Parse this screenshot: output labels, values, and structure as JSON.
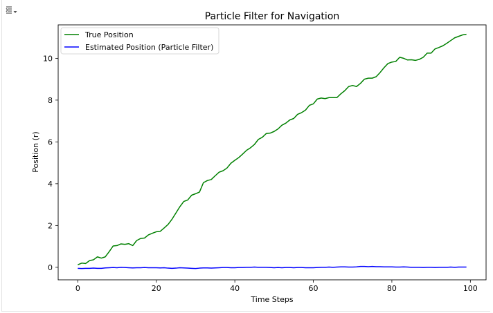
{
  "cell": {
    "icon": "output-collapse-icon"
  },
  "chart_data": {
    "type": "line",
    "title": "Particle Filter for Navigation",
    "xlabel": "Time Steps",
    "ylabel": "Position (r)",
    "xlim": [
      -5,
      104
    ],
    "ylim": [
      -0.6,
      11.6
    ],
    "xticks": [
      0,
      20,
      40,
      60,
      80,
      100
    ],
    "yticks": [
      0,
      2,
      4,
      6,
      8,
      10
    ],
    "grid": false,
    "legend": "upper left",
    "x": [
      0,
      1,
      2,
      3,
      4,
      5,
      6,
      7,
      8,
      9,
      10,
      11,
      12,
      13,
      14,
      15,
      16,
      17,
      18,
      19,
      20,
      21,
      22,
      23,
      24,
      25,
      26,
      27,
      28,
      29,
      30,
      31,
      32,
      33,
      34,
      35,
      36,
      37,
      38,
      39,
      40,
      41,
      42,
      43,
      44,
      45,
      46,
      47,
      48,
      49,
      50,
      51,
      52,
      53,
      54,
      55,
      56,
      57,
      58,
      59,
      60,
      61,
      62,
      63,
      64,
      65,
      66,
      67,
      68,
      69,
      70,
      71,
      72,
      73,
      74,
      75,
      76,
      77,
      78,
      79,
      80,
      81,
      82,
      83,
      84,
      85,
      86,
      87,
      88,
      89,
      90,
      91,
      92,
      93,
      94,
      95,
      96,
      97,
      98,
      99
    ],
    "series": [
      {
        "name": "True Position",
        "color": "#008000",
        "values": [
          0.12,
          0.2,
          0.18,
          0.32,
          0.36,
          0.5,
          0.44,
          0.5,
          0.75,
          1.02,
          1.04,
          1.12,
          1.1,
          1.13,
          1.04,
          1.28,
          1.38,
          1.4,
          1.55,
          1.63,
          1.7,
          1.72,
          1.88,
          2.05,
          2.3,
          2.6,
          2.9,
          3.15,
          3.22,
          3.45,
          3.52,
          3.6,
          4.05,
          4.15,
          4.2,
          4.38,
          4.55,
          4.62,
          4.75,
          4.98,
          5.12,
          5.25,
          5.42,
          5.6,
          5.72,
          5.88,
          6.12,
          6.22,
          6.4,
          6.42,
          6.5,
          6.62,
          6.8,
          6.9,
          7.05,
          7.12,
          7.32,
          7.4,
          7.52,
          7.75,
          7.82,
          8.05,
          8.1,
          8.07,
          8.12,
          8.12,
          8.12,
          8.3,
          8.45,
          8.65,
          8.7,
          8.65,
          8.8,
          9.0,
          9.05,
          9.05,
          9.12,
          9.32,
          9.55,
          9.75,
          9.82,
          9.85,
          10.05,
          10.0,
          9.92,
          9.93,
          9.9,
          9.95,
          10.05,
          10.25,
          10.25,
          10.45,
          10.52,
          10.6,
          10.72,
          10.85,
          10.98,
          11.05,
          11.12,
          11.15
        ]
      },
      {
        "name": "Estimated Position (Particle Filter)",
        "color": "#0000ff",
        "values": [
          -0.05,
          -0.06,
          -0.05,
          -0.05,
          -0.04,
          -0.05,
          -0.05,
          -0.03,
          -0.02,
          -0.01,
          -0.02,
          0.0,
          -0.01,
          -0.02,
          -0.03,
          -0.02,
          -0.02,
          -0.01,
          -0.02,
          -0.02,
          -0.02,
          -0.03,
          -0.02,
          -0.04,
          -0.05,
          -0.04,
          -0.02,
          -0.03,
          -0.04,
          -0.05,
          -0.06,
          -0.04,
          -0.03,
          -0.03,
          -0.04,
          -0.03,
          -0.02,
          -0.01,
          -0.01,
          -0.02,
          -0.02,
          -0.01,
          -0.01,
          0.0,
          0.0,
          0.01,
          0.0,
          0.0,
          0.0,
          -0.01,
          -0.02,
          -0.01,
          -0.02,
          -0.01,
          -0.01,
          -0.02,
          -0.01,
          -0.01,
          -0.02,
          -0.02,
          -0.02,
          -0.01,
          0.0,
          0.0,
          0.01,
          0.0,
          0.01,
          0.02,
          0.02,
          0.01,
          0.01,
          0.02,
          0.04,
          0.04,
          0.03,
          0.04,
          0.03,
          0.03,
          0.02,
          0.02,
          0.02,
          0.01,
          0.01,
          0.02,
          0.01,
          0.0,
          0.0,
          0.0,
          -0.01,
          0.0,
          0.0,
          -0.01,
          0.0,
          0.0,
          0.0,
          0.01,
          0.0,
          0.01,
          0.01,
          0.01
        ]
      }
    ]
  }
}
